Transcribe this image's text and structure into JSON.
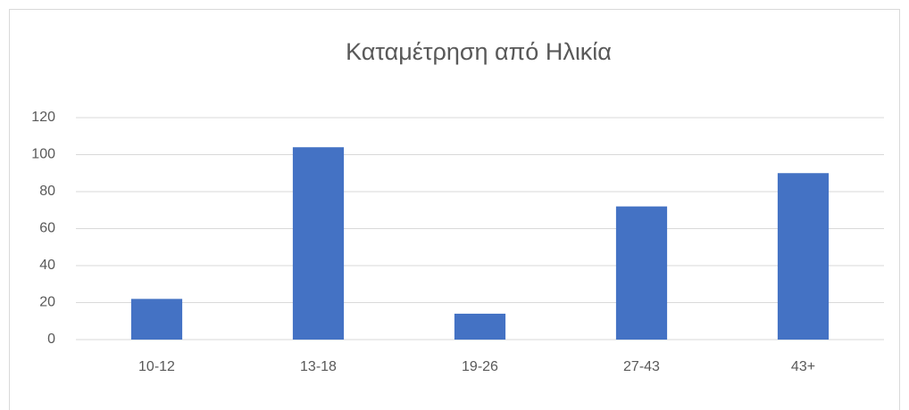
{
  "chart_data": {
    "type": "bar",
    "title": "Καταμέτρηση από Ηλικία",
    "categories": [
      "10-12",
      "13-18",
      "19-26",
      "27-43",
      "43+"
    ],
    "values": [
      22,
      104,
      14,
      72,
      90
    ],
    "color": "#4472c4",
    "ylim": [
      0,
      120
    ],
    "yticks": [
      0,
      20,
      40,
      60,
      80,
      100,
      120
    ],
    "grid": true
  }
}
